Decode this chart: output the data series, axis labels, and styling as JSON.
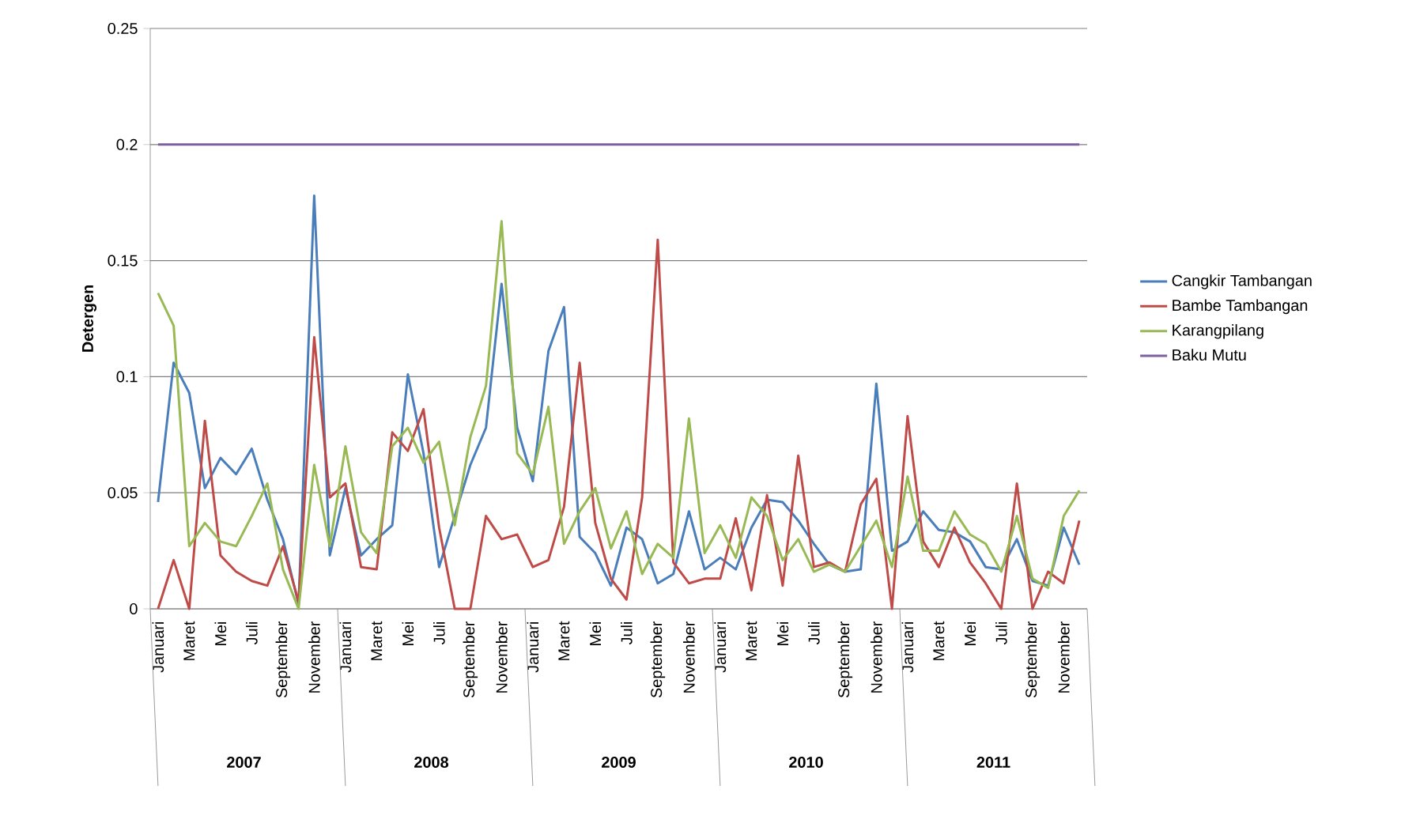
{
  "chart_data": {
    "type": "line",
    "ylabel": "Detergen",
    "categories": [
      "Januari",
      null,
      "Maret",
      null,
      "Mei",
      null,
      "Juli",
      null,
      "September",
      null,
      "November",
      null,
      "Januari",
      null,
      "Maret",
      null,
      "Mei",
      null,
      "Juli",
      null,
      "September",
      null,
      "November",
      null,
      "Januari",
      null,
      "Maret",
      null,
      "Mei",
      null,
      "Juli",
      null,
      "September",
      null,
      "November",
      null,
      "Januari",
      null,
      "Maret",
      null,
      "Mei",
      null,
      "Juli",
      null,
      "September",
      null,
      "November",
      null,
      "Januari",
      null,
      "Maret",
      null,
      "Mei",
      null,
      "Juli",
      null,
      "September",
      null,
      "November",
      null
    ],
    "annotations": [
      "2007",
      "2008",
      "2009",
      "2010",
      "2011"
    ],
    "series": [
      {
        "name": "Cangkir Tambangan",
        "color": "#4a7ebb",
        "values": [
          0.046,
          0.106,
          0.093,
          0.052,
          0.065,
          0.058,
          0.069,
          0.047,
          0.03,
          0.002,
          0.178,
          0.023,
          0.052,
          0.023,
          0.03,
          0.036,
          0.101,
          0.067,
          0.018,
          0.04,
          0.062,
          0.078,
          0.14,
          0.078,
          0.055,
          0.111,
          0.13,
          0.031,
          0.024,
          0.01,
          0.035,
          0.03,
          0.011,
          0.015,
          0.042,
          0.017,
          0.022,
          0.017,
          0.035,
          0.047,
          0.046,
          0.038,
          0.028,
          0.019,
          0.016,
          0.017,
          0.097,
          0.025,
          0.029,
          0.042,
          0.034,
          0.033,
          0.029,
          0.018,
          0.017,
          0.03,
          0.012,
          0.01,
          0.035,
          0.019
        ]
      },
      {
        "name": "Bambe Tambangan",
        "color": "#be4b48",
        "values": [
          0,
          0.021,
          0,
          0.081,
          0.023,
          0.016,
          0.012,
          0.01,
          0.027,
          0.003,
          0.117,
          0.048,
          0.054,
          0.018,
          0.017,
          0.076,
          0.068,
          0.086,
          0.035,
          0,
          0,
          0.04,
          0.03,
          0.032,
          0.018,
          0.021,
          0.044,
          0.106,
          0.037,
          0.013,
          0.004,
          0.048,
          0.159,
          0.02,
          0.011,
          0.013,
          0.013,
          0.039,
          0.008,
          0.049,
          0.01,
          0.066,
          0.018,
          0.02,
          0.016,
          0.045,
          0.056,
          0,
          0.083,
          0.029,
          0.018,
          0.035,
          0.02,
          0.011,
          0,
          0.054,
          0,
          0.016,
          0.011,
          0.038
        ]
      },
      {
        "name": "Karangpilang",
        "color": "#98b954",
        "values": [
          0.136,
          0.122,
          0.027,
          0.037,
          0.029,
          0.027,
          0.04,
          0.054,
          0.017,
          0,
          0.062,
          0.027,
          0.07,
          0.033,
          0.024,
          0.07,
          0.078,
          0.063,
          0.072,
          0.036,
          0.074,
          0.096,
          0.167,
          0.067,
          0.058,
          0.087,
          0.028,
          0.042,
          0.052,
          0.026,
          0.042,
          0.015,
          0.028,
          0.022,
          0.082,
          0.024,
          0.036,
          0.022,
          0.048,
          0.04,
          0.021,
          0.03,
          0.016,
          0.019,
          0.016,
          0.027,
          0.038,
          0.018,
          0.057,
          0.025,
          0.025,
          0.042,
          0.032,
          0.028,
          0.016,
          0.04,
          0.013,
          0.009,
          0.04,
          0.051
        ]
      },
      {
        "name": "Baku Mutu",
        "color": "#7d60a0",
        "values": [
          0.2,
          0.2,
          0.2,
          0.2,
          0.2,
          0.2,
          0.2,
          0.2,
          0.2,
          0.2,
          0.2,
          0.2,
          0.2,
          0.2,
          0.2,
          0.2,
          0.2,
          0.2,
          0.2,
          0.2,
          0.2,
          0.2,
          0.2,
          0.2,
          0.2,
          0.2,
          0.2,
          0.2,
          0.2,
          0.2,
          0.2,
          0.2,
          0.2,
          0.2,
          0.2,
          0.2,
          0.2,
          0.2,
          0.2,
          0.2,
          0.2,
          0.2,
          0.2,
          0.2,
          0.2,
          0.2,
          0.2,
          0.2,
          0.2,
          0.2,
          0.2,
          0.2,
          0.2,
          0.2,
          0.2,
          0.2,
          0.2,
          0.2,
          0.2,
          0.2
        ]
      }
    ],
    "ylim": [
      0,
      0.25
    ],
    "yticks": [
      0,
      0.05,
      0.1,
      0.15,
      0.2,
      0.25
    ],
    "grid": "y",
    "legend": "right",
    "marker": "none",
    "line_style": "solid"
  }
}
